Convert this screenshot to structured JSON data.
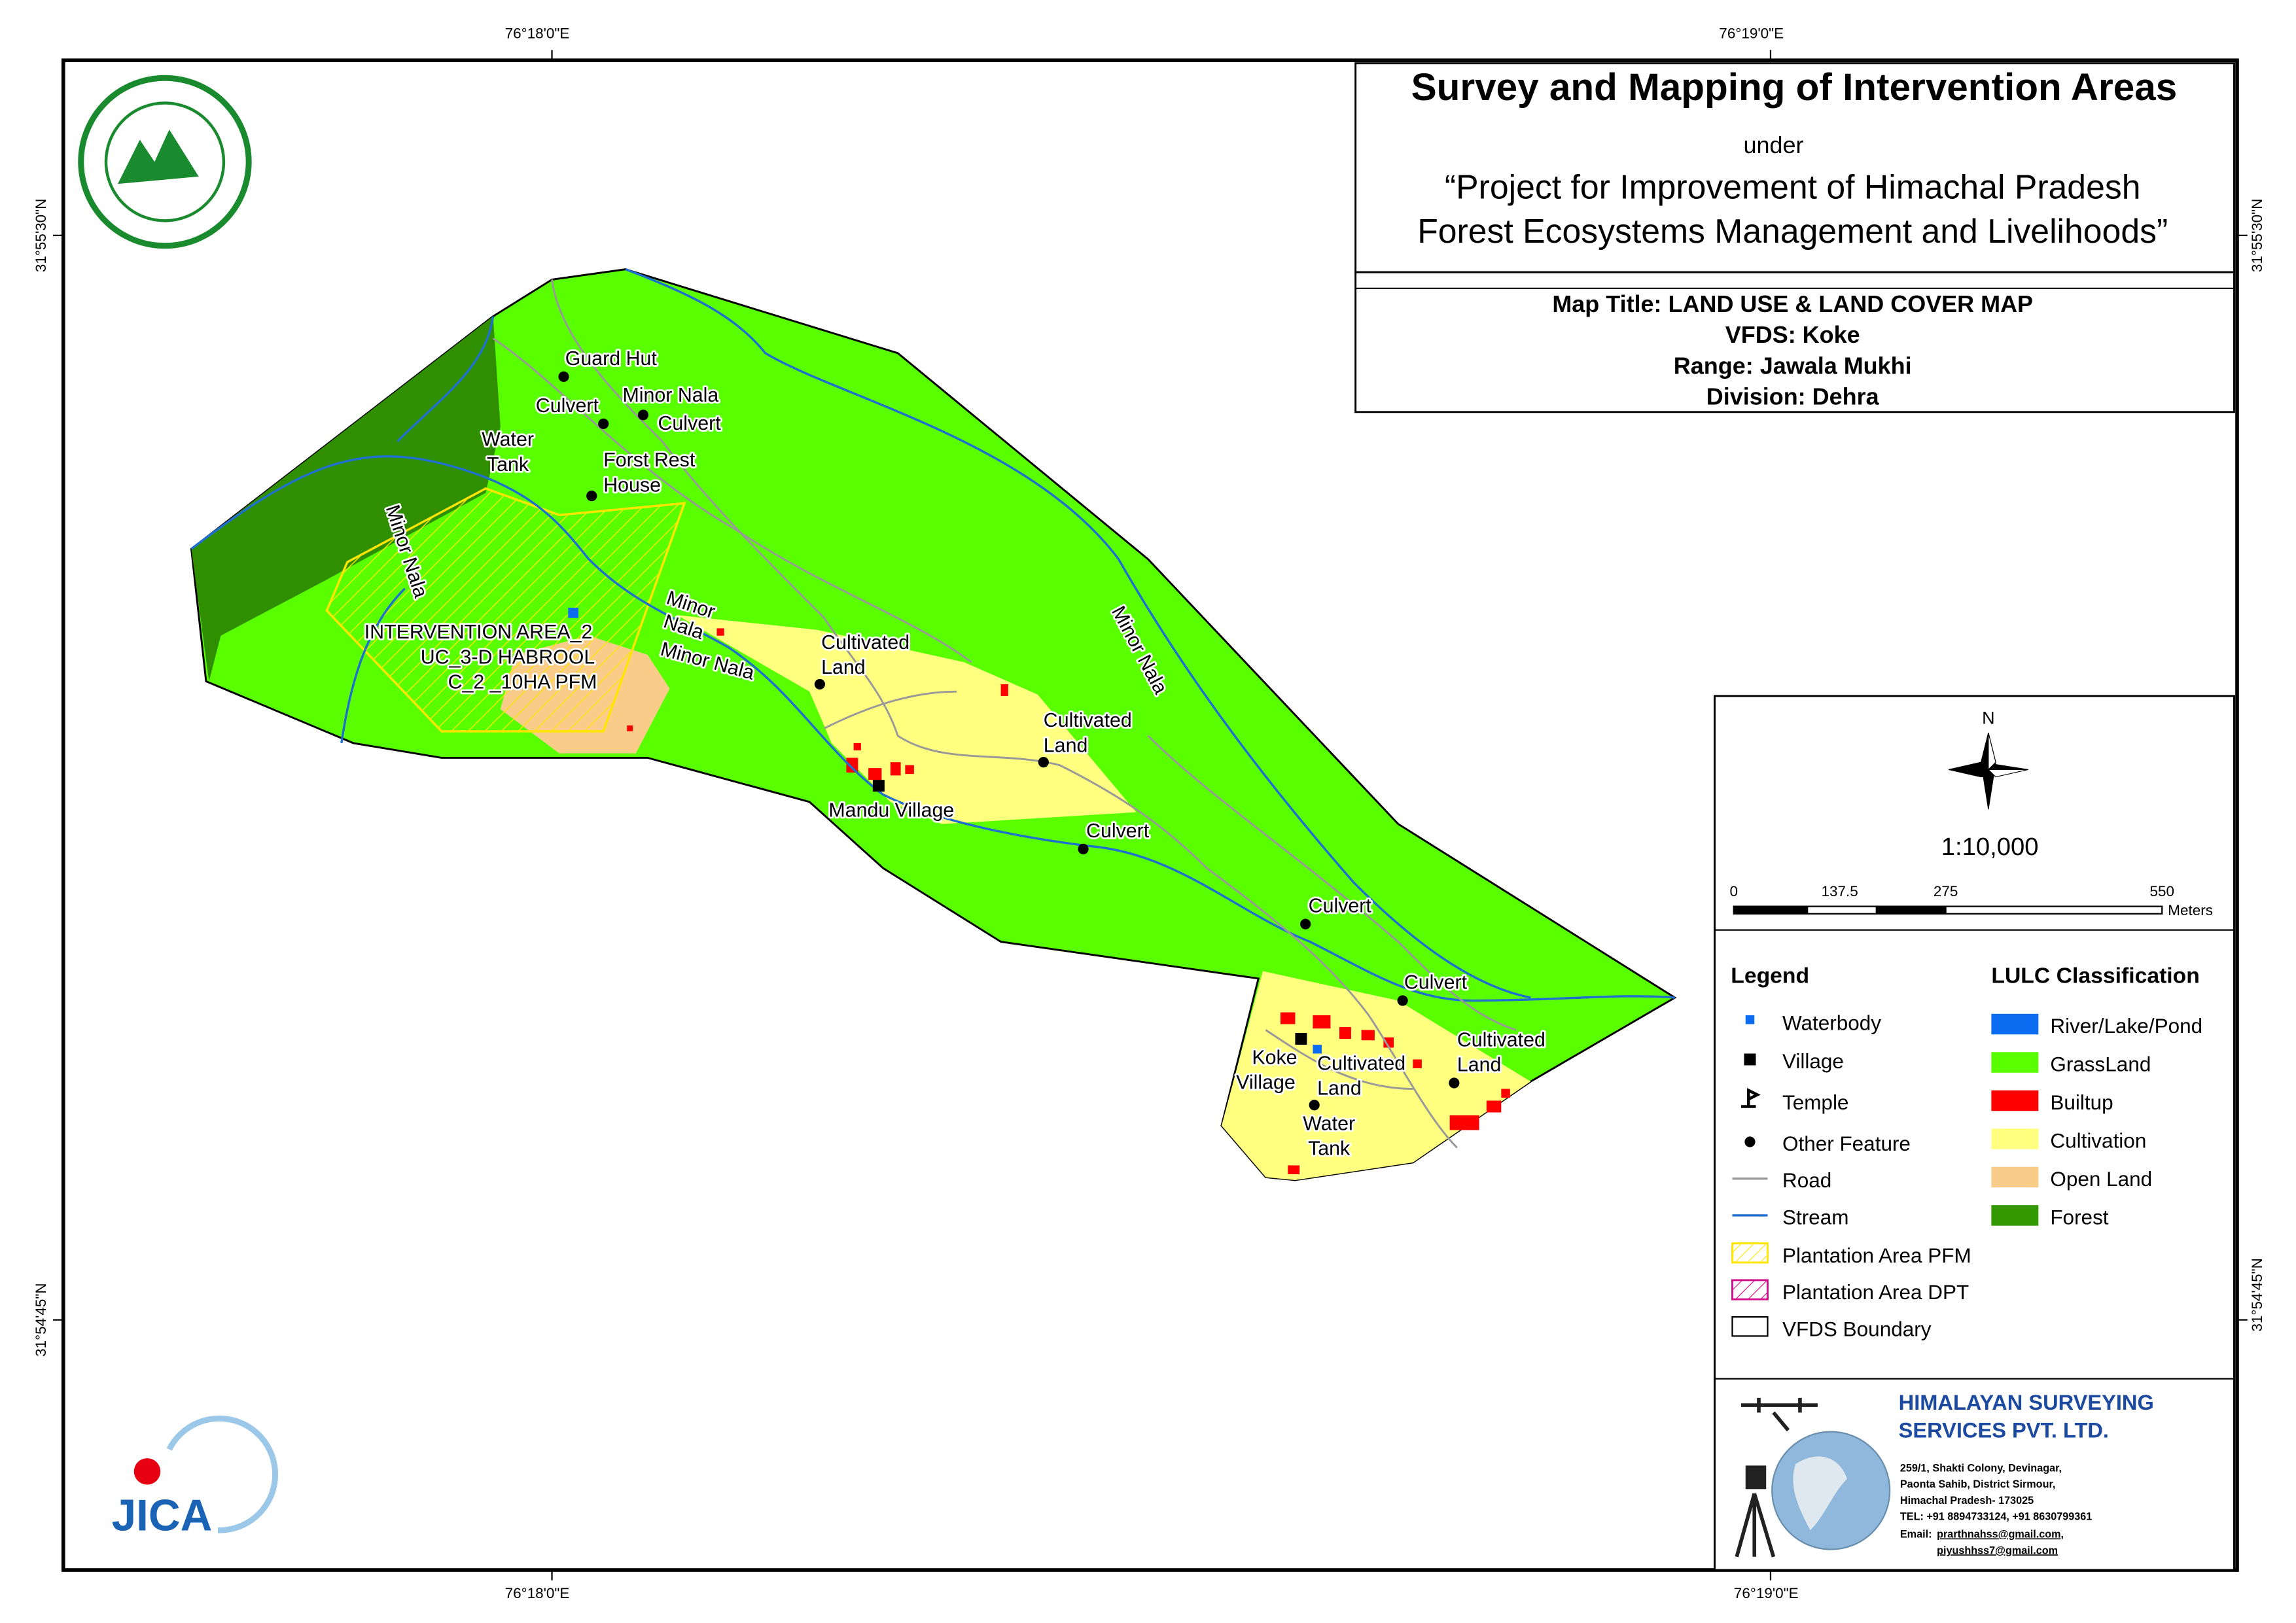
{
  "header": {
    "title": "Survey and Mapping of Intervention Areas",
    "under": "under",
    "project_line1": "“Project for Improvement of Himachal Pradesh",
    "project_line2": "Forest Ecosystems Management and Livelihoods”"
  },
  "map_info": {
    "map_title": "Map Title: LAND USE & LAND COVER MAP",
    "vfds": "VFDS: Koke",
    "range": "Range: Jawala Mukhi",
    "division": "Division: Dehra"
  },
  "coordinates": {
    "top": [
      "76°18'0\"E",
      "76°19'0\"E"
    ],
    "bottom": [
      "76°18'0\"E",
      "76°19'0\"E"
    ],
    "left": [
      "31°55'30\"N",
      "31°54'45\"N"
    ],
    "right": [
      "31°55'30\"N",
      "31°54'45\"N"
    ]
  },
  "map_labels": [
    {
      "lines": [
        "Guard Hut"
      ]
    },
    {
      "lines": [
        "Culvert"
      ]
    },
    {
      "lines": [
        "Minor Nala"
      ]
    },
    {
      "lines": [
        "Culvert"
      ]
    },
    {
      "lines": [
        "Water",
        "Tank"
      ]
    },
    {
      "lines": [
        "Forst Rest",
        "House"
      ]
    },
    {
      "lines": [
        "Minor Nala"
      ]
    },
    {
      "lines": [
        "Minor",
        "Nala"
      ]
    },
    {
      "lines": [
        "Minor Nala"
      ]
    },
    {
      "lines": [
        "INTERVENTION AREA_2",
        "UC_3-D HABROOL",
        "C_2 _10HA PFM"
      ]
    },
    {
      "lines": [
        "Cultivated",
        "Land"
      ]
    },
    {
      "lines": [
        "Cultivated",
        "Land"
      ]
    },
    {
      "lines": [
        "Mandu Village"
      ]
    },
    {
      "lines": [
        "Culvert"
      ]
    },
    {
      "lines": [
        "Minor Nala"
      ]
    },
    {
      "lines": [
        "Culvert"
      ]
    },
    {
      "lines": [
        "Culvert"
      ]
    },
    {
      "lines": [
        "Cultivated",
        "Land"
      ]
    },
    {
      "lines": [
        "Koke",
        "Village"
      ]
    },
    {
      "lines": [
        "Cultivated",
        "Land"
      ]
    },
    {
      "lines": [
        "Water",
        "Tank"
      ]
    }
  ],
  "scale": {
    "north": "N",
    "ratio": "1:10,000",
    "ticks": [
      0,
      137.5,
      275,
      550
    ],
    "unit": "Meters"
  },
  "legend": {
    "title": "Legend",
    "items": [
      "Waterbody",
      "Village",
      "Temple",
      "Other Feature",
      "Road",
      "Stream",
      "Plantation Area PFM",
      "Plantation Area DPT",
      "VFDS Boundary"
    ]
  },
  "lulc": {
    "title": "LULC Classification",
    "items": [
      "River/Lake/Pond",
      "GrassLand",
      "Builtup",
      "Cultivation",
      "Open Land",
      "Forest"
    ]
  },
  "company": {
    "name_line1": "HIMALAYAN SURVEYING",
    "name_line2": "SERVICES PVT. LTD.",
    "address": [
      "259/1, Shakti Colony, Devinagar,",
      "Paonta Sahib, District Sirmour,",
      "Himachal Pradesh- 173025",
      "TEL: +91 8894733124, +91 8630799361"
    ],
    "email_label": "Email:",
    "emails": [
      "prarthnahss@gmail.com,",
      "piyushhss7@gmail.com"
    ]
  },
  "logo_text": "JICA"
}
